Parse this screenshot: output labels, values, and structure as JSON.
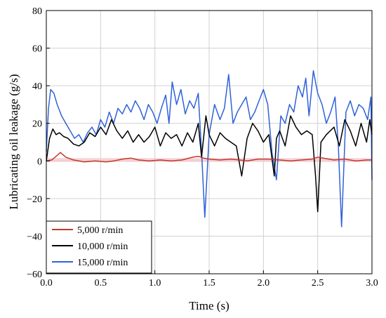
{
  "chart_data": {
    "type": "line",
    "title": "",
    "xlabel": "Time (s)",
    "ylabel": "Lubricating oil leakage (g/s)",
    "xlim": [
      0.0,
      3.0
    ],
    "ylim": [
      -60,
      80
    ],
    "xticks": [
      "0.0",
      "0.5",
      "1.0",
      "1.5",
      "2.0",
      "2.5",
      "3.0"
    ],
    "yticks": [
      "−60",
      "−40",
      "−20",
      "0",
      "20",
      "40",
      "60",
      "80"
    ],
    "grid": true,
    "legend_position": "bottom-left",
    "series": [
      {
        "name": "5,000 r/min",
        "color": "#c0392b",
        "x": [
          0.0,
          0.05,
          0.1,
          0.13,
          0.18,
          0.25,
          0.35,
          0.45,
          0.55,
          0.62,
          0.7,
          0.78,
          0.85,
          0.95,
          1.05,
          1.15,
          1.25,
          1.35,
          1.4,
          1.45,
          1.5,
          1.6,
          1.7,
          1.78,
          1.85,
          1.95,
          2.05,
          2.15,
          2.25,
          2.35,
          2.45,
          2.5,
          2.55,
          2.65,
          2.75,
          2.85,
          2.95,
          3.0
        ],
        "y": [
          0,
          0.5,
          3,
          4.5,
          2,
          0.5,
          -0.5,
          0,
          -0.5,
          0,
          1,
          1.5,
          0.5,
          0,
          0.5,
          0,
          0.5,
          2,
          2.5,
          1.5,
          1,
          0.5,
          1,
          0.5,
          0,
          1,
          1,
          0.5,
          0,
          0.5,
          1,
          2,
          1.5,
          0.5,
          1,
          0,
          0.5,
          0.5
        ]
      },
      {
        "name": "10,000 r/min",
        "color": "#000000",
        "x": [
          0.0,
          0.03,
          0.06,
          0.09,
          0.12,
          0.16,
          0.2,
          0.25,
          0.3,
          0.35,
          0.4,
          0.45,
          0.5,
          0.55,
          0.6,
          0.65,
          0.7,
          0.75,
          0.8,
          0.85,
          0.9,
          0.95,
          1.0,
          1.05,
          1.1,
          1.15,
          1.2,
          1.25,
          1.3,
          1.35,
          1.4,
          1.43,
          1.47,
          1.5,
          1.55,
          1.6,
          1.65,
          1.7,
          1.75,
          1.8,
          1.85,
          1.9,
          1.95,
          2.0,
          2.05,
          2.1,
          2.12,
          2.15,
          2.2,
          2.25,
          2.3,
          2.35,
          2.4,
          2.45,
          2.48,
          2.5,
          2.53,
          2.58,
          2.65,
          2.7,
          2.75,
          2.8,
          2.85,
          2.9,
          2.95,
          2.98,
          3.0
        ],
        "y": [
          0,
          12,
          17,
          14,
          15,
          13,
          12,
          9,
          8,
          10,
          15,
          13,
          18,
          14,
          22,
          16,
          12,
          16,
          10,
          14,
          10,
          13,
          18,
          8,
          15,
          12,
          14,
          8,
          15,
          10,
          20,
          2,
          24,
          14,
          8,
          15,
          12,
          10,
          8,
          -8,
          12,
          20,
          16,
          10,
          14,
          -8,
          12,
          16,
          8,
          24,
          18,
          14,
          16,
          14,
          -8,
          -27,
          10,
          14,
          18,
          8,
          22,
          16,
          8,
          20,
          10,
          22,
          14
        ]
      },
      {
        "name": "15,000 r/min",
        "color": "#2f62d9",
        "x": [
          0.0,
          0.02,
          0.04,
          0.07,
          0.1,
          0.14,
          0.18,
          0.22,
          0.26,
          0.3,
          0.34,
          0.38,
          0.42,
          0.46,
          0.5,
          0.54,
          0.58,
          0.62,
          0.66,
          0.7,
          0.74,
          0.78,
          0.82,
          0.86,
          0.9,
          0.94,
          0.98,
          1.02,
          1.06,
          1.1,
          1.13,
          1.16,
          1.2,
          1.24,
          1.28,
          1.32,
          1.36,
          1.4,
          1.43,
          1.46,
          1.5,
          1.55,
          1.6,
          1.64,
          1.68,
          1.72,
          1.76,
          1.8,
          1.84,
          1.88,
          1.92,
          1.96,
          2.0,
          2.04,
          2.08,
          2.12,
          2.16,
          2.2,
          2.24,
          2.28,
          2.32,
          2.36,
          2.39,
          2.42,
          2.46,
          2.5,
          2.54,
          2.58,
          2.62,
          2.66,
          2.69,
          2.72,
          2.76,
          2.8,
          2.84,
          2.88,
          2.92,
          2.96,
          2.99,
          3.0
        ],
        "y": [
          5,
          28,
          38,
          36,
          30,
          24,
          20,
          16,
          12,
          14,
          10,
          15,
          18,
          14,
          22,
          18,
          26,
          20,
          28,
          25,
          30,
          26,
          32,
          28,
          22,
          30,
          26,
          20,
          28,
          35,
          20,
          42,
          30,
          38,
          25,
          32,
          28,
          36,
          5,
          -30,
          14,
          30,
          22,
          28,
          46,
          20,
          26,
          30,
          34,
          22,
          26,
          32,
          38,
          30,
          4,
          -10,
          24,
          20,
          30,
          26,
          40,
          34,
          44,
          24,
          48,
          36,
          30,
          20,
          26,
          34,
          8,
          -35,
          26,
          32,
          24,
          30,
          28,
          22,
          34,
          -10
        ]
      }
    ]
  }
}
